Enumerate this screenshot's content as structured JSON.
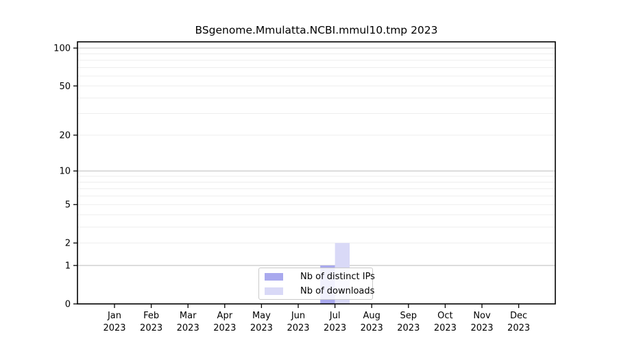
{
  "page": {
    "background": "#ffffff"
  },
  "chart_data": {
    "type": "bar",
    "title": "BSgenome.Mmulatta.NCBI.mmul10.tmp 2023",
    "categories": [
      {
        "month": "Jan",
        "year": "2023"
      },
      {
        "month": "Feb",
        "year": "2023"
      },
      {
        "month": "Mar",
        "year": "2023"
      },
      {
        "month": "Apr",
        "year": "2023"
      },
      {
        "month": "May",
        "year": "2023"
      },
      {
        "month": "Jun",
        "year": "2023"
      },
      {
        "month": "Jul",
        "year": "2023"
      },
      {
        "month": "Aug",
        "year": "2023"
      },
      {
        "month": "Sep",
        "year": "2023"
      },
      {
        "month": "Oct",
        "year": "2023"
      },
      {
        "month": "Nov",
        "year": "2023"
      },
      {
        "month": "Dec",
        "year": "2023"
      }
    ],
    "series": [
      {
        "name": "Nb of distinct IPs",
        "color": "#a9a9ee",
        "values": [
          0,
          0,
          0,
          0,
          0,
          0,
          1,
          0,
          0,
          0,
          0,
          0
        ]
      },
      {
        "name": "Nb of downloads",
        "color": "#d9d9f7",
        "values": [
          0,
          0,
          0,
          0,
          0,
          0,
          2,
          0,
          0,
          0,
          0,
          0
        ]
      }
    ],
    "y_axis": {
      "scale": "log1p",
      "tick_values": [
        0,
        1,
        2,
        5,
        10,
        20,
        50,
        100
      ],
      "major_gridlines": [
        1,
        10,
        100
      ],
      "minor_gridlines": [
        2,
        3,
        4,
        5,
        6,
        7,
        8,
        9,
        20,
        30,
        40,
        50,
        60,
        70,
        80,
        90
      ],
      "range": [
        0,
        112
      ]
    },
    "x_axis": {
      "label_lines": 2
    },
    "legend": {
      "position": "bottom-center"
    },
    "grid": "on",
    "colors": {
      "major_grid": "#c8c8c8",
      "minor_grid": "#ededed",
      "axis": "#000000",
      "text": "#000000"
    }
  }
}
